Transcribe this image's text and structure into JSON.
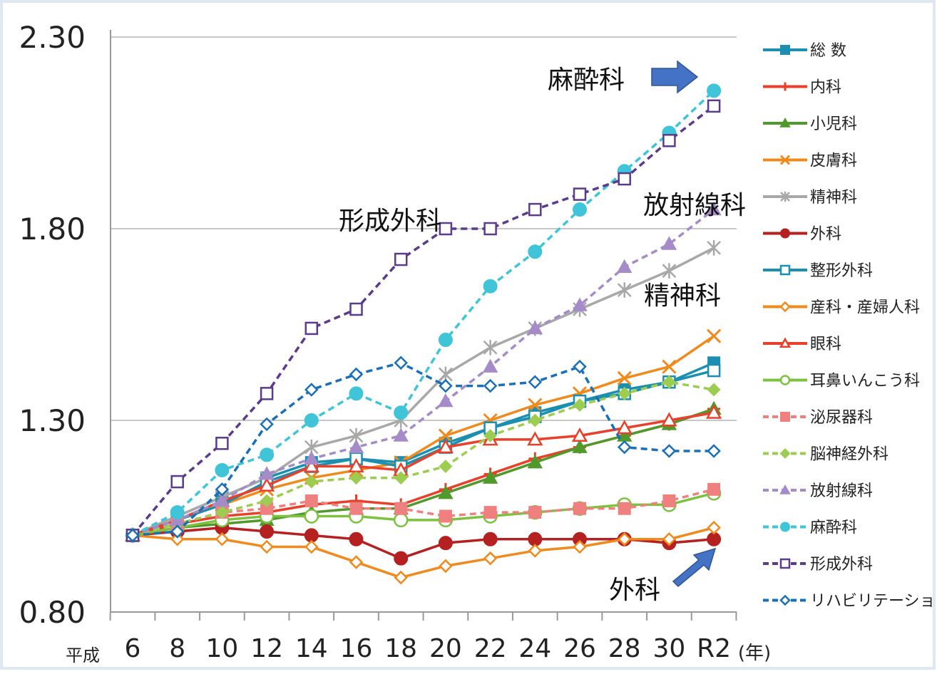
{
  "chart_data": {
    "type": "line",
    "x_prefix": "平成",
    "x_unit": "(年)",
    "categories": [
      "6",
      "8",
      "10",
      "12",
      "14",
      "16",
      "18",
      "20",
      "22",
      "24",
      "26",
      "28",
      "30",
      "R2"
    ],
    "ylim": [
      0.8,
      2.3
    ],
    "yticks": [
      "0.80",
      "1.30",
      "1.80",
      "2.30"
    ],
    "grid": true,
    "legend_position": "right",
    "series": [
      {
        "name": "総 数",
        "color": "#1a8fb0",
        "dash": false,
        "marker": "square",
        "values": [
          1.0,
          1.05,
          1.1,
          1.15,
          1.19,
          1.2,
          1.19,
          1.24,
          1.28,
          1.32,
          1.35,
          1.38,
          1.4,
          1.45
        ]
      },
      {
        "name": "内科",
        "color": "#e8402a",
        "dash": false,
        "marker": "plus",
        "values": [
          1.0,
          1.03,
          1.05,
          1.06,
          1.08,
          1.09,
          1.08,
          1.12,
          1.16,
          1.2,
          1.23,
          1.26,
          1.29,
          1.33
        ]
      },
      {
        "name": "小児科",
        "color": "#4f9a2a",
        "dash": false,
        "marker": "triangle",
        "values": [
          1.0,
          1.02,
          1.03,
          1.04,
          1.06,
          1.07,
          1.07,
          1.11,
          1.15,
          1.19,
          1.23,
          1.26,
          1.29,
          1.33
        ]
      },
      {
        "name": "皮膚科",
        "color": "#f08a1c",
        "dash": false,
        "marker": "x",
        "values": [
          1.0,
          1.04,
          1.08,
          1.12,
          1.15,
          1.17,
          1.19,
          1.26,
          1.3,
          1.34,
          1.37,
          1.41,
          1.44,
          1.52
        ]
      },
      {
        "name": "精神科",
        "color": "#a8a8a8",
        "dash": false,
        "marker": "star",
        "values": [
          1.0,
          1.05,
          1.1,
          1.15,
          1.23,
          1.26,
          1.3,
          1.42,
          1.49,
          1.54,
          1.59,
          1.64,
          1.69,
          1.75
        ]
      },
      {
        "name": "外科",
        "color": "#b52020",
        "dash": false,
        "marker": "circle",
        "values": [
          1.0,
          1.01,
          1.02,
          1.01,
          1.0,
          0.99,
          0.94,
          0.98,
          0.99,
          0.99,
          0.99,
          0.99,
          0.98,
          0.99
        ]
      },
      {
        "name": "整形外科",
        "color": "#1a8fb0",
        "dash": false,
        "marker": "square-open",
        "values": [
          1.0,
          1.04,
          1.08,
          1.14,
          1.18,
          1.2,
          1.18,
          1.23,
          1.28,
          1.31,
          1.35,
          1.37,
          1.4,
          1.43
        ]
      },
      {
        "name": "産科・産婦人科",
        "color": "#f08a1c",
        "dash": false,
        "marker": "diamond-open",
        "values": [
          1.0,
          0.99,
          0.99,
          0.97,
          0.97,
          0.93,
          0.89,
          0.92,
          0.94,
          0.96,
          0.97,
          0.99,
          0.99,
          1.02
        ]
      },
      {
        "name": "眼科",
        "color": "#e8402a",
        "dash": false,
        "marker": "triangle-open",
        "values": [
          1.0,
          1.04,
          1.09,
          1.13,
          1.18,
          1.18,
          1.17,
          1.23,
          1.25,
          1.25,
          1.26,
          1.28,
          1.3,
          1.32
        ]
      },
      {
        "name": "耳鼻いんこう科",
        "color": "#7cc140",
        "dash": false,
        "marker": "circle-open",
        "values": [
          1.0,
          1.02,
          1.04,
          1.05,
          1.05,
          1.05,
          1.04,
          1.04,
          1.05,
          1.06,
          1.07,
          1.08,
          1.08,
          1.11
        ]
      },
      {
        "name": "泌尿器科",
        "color": "#f08080",
        "dash": true,
        "marker": "square",
        "values": [
          1.0,
          1.03,
          1.06,
          1.07,
          1.09,
          1.07,
          1.07,
          1.05,
          1.06,
          1.06,
          1.07,
          1.07,
          1.09,
          1.12
        ]
      },
      {
        "name": "脳神経外科",
        "color": "#9ccc50",
        "dash": true,
        "marker": "diamond",
        "values": [
          1.0,
          1.03,
          1.06,
          1.09,
          1.14,
          1.15,
          1.15,
          1.18,
          1.26,
          1.3,
          1.34,
          1.37,
          1.4,
          1.38
        ]
      },
      {
        "name": "放射線科",
        "color": "#a58cc8",
        "dash": true,
        "marker": "triangle",
        "values": [
          1.0,
          1.04,
          1.09,
          1.16,
          1.2,
          1.23,
          1.26,
          1.35,
          1.44,
          1.54,
          1.6,
          1.7,
          1.76,
          1.85
        ]
      },
      {
        "name": "麻酔科",
        "color": "#3fc4d8",
        "dash": true,
        "marker": "circle",
        "values": [
          1.0,
          1.06,
          1.17,
          1.21,
          1.3,
          1.37,
          1.32,
          1.51,
          1.65,
          1.74,
          1.85,
          1.95,
          2.05,
          2.16
        ]
      },
      {
        "name": "形成外科",
        "color": "#5b3c8c",
        "dash": true,
        "marker": "square-open",
        "values": [
          1.0,
          1.14,
          1.24,
          1.37,
          1.54,
          1.59,
          1.72,
          1.8,
          1.8,
          1.85,
          1.89,
          1.93,
          2.03,
          2.12
        ]
      },
      {
        "name": "リハビリテーション科",
        "color": "#1a6fb8",
        "dash": true,
        "marker": "diamond-open",
        "values": [
          1.0,
          1.01,
          1.12,
          1.29,
          1.38,
          1.42,
          1.45,
          1.39,
          1.39,
          1.4,
          1.44,
          1.23,
          1.22,
          1.22
        ]
      }
    ],
    "annotations": [
      "麻酔科",
      "形成外科",
      "放射線科",
      "精神科",
      "外科"
    ]
  }
}
